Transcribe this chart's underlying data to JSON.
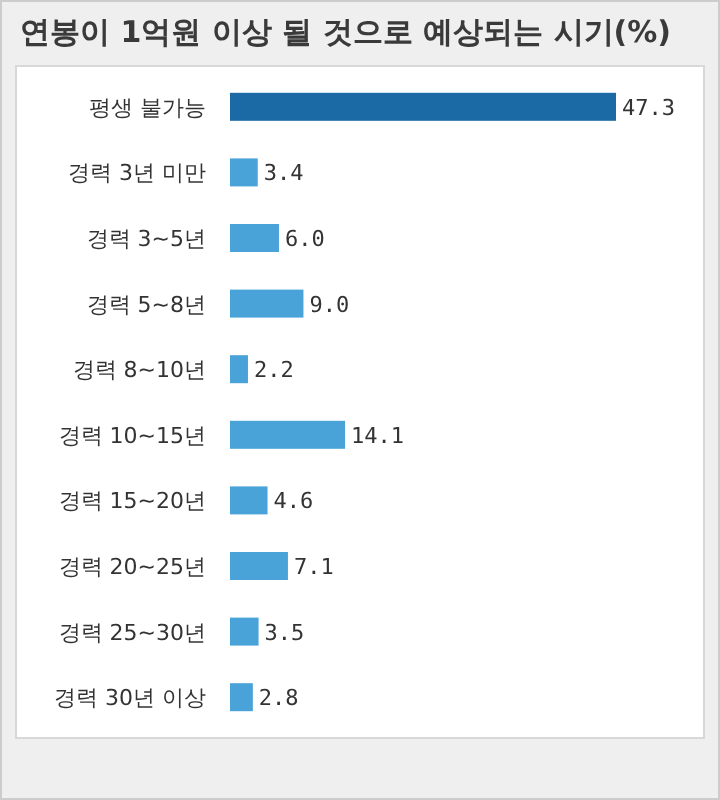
{
  "chart_data": {
    "type": "bar",
    "orientation": "horizontal",
    "title": "연봉이 1억원 이상 될 것으로 예상되는 시기(%)",
    "categories": [
      "평생 불가능",
      "경력 3년 미만",
      "경력 3~5년",
      "경력 5~8년",
      "경력 8~10년",
      "경력 10~15년",
      "경력 15~20년",
      "경력 20~25년",
      "경력 25~30년",
      "경력 30년 이상"
    ],
    "values": [
      47.3,
      3.4,
      6.0,
      9.0,
      2.2,
      14.1,
      4.6,
      7.1,
      3.5,
      2.8
    ],
    "colors": [
      "#1b6aa5",
      "#4aa3d8",
      "#4aa3d8",
      "#4aa3d8",
      "#4aa3d8",
      "#4aa3d8",
      "#4aa3d8",
      "#4aa3d8",
      "#4aa3d8",
      "#4aa3d8"
    ],
    "value_labels": [
      "47.3",
      "3.4",
      "6.0",
      "9.0",
      "2.2",
      "14.1",
      "4.6",
      "7.1",
      "3.5",
      "2.8"
    ]
  }
}
